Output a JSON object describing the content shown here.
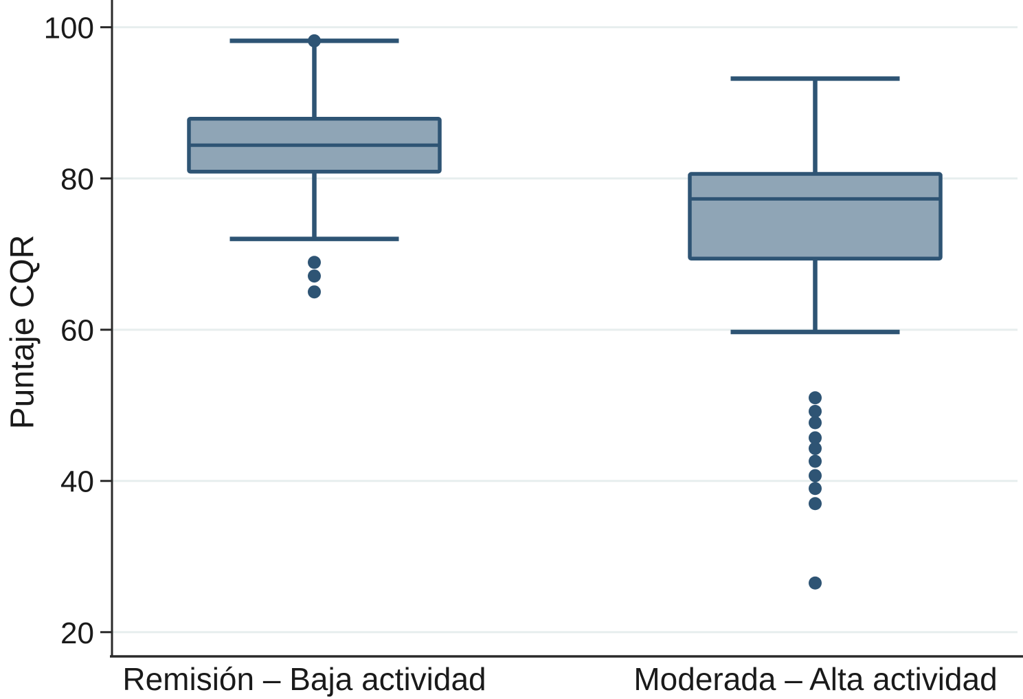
{
  "chart_data": {
    "type": "box",
    "title": "",
    "ylabel": "Puntaje CQR",
    "xlabel": "",
    "yticks": [
      20,
      40,
      60,
      80,
      100
    ],
    "ylim": [
      16.8,
      103.6
    ],
    "grid": "horizontal",
    "legend": "none",
    "categories": [
      "Remisión – Baja actividad",
      "Moderada –  Alta actividad"
    ],
    "series": [
      {
        "name": "Remisión – Baja actividad",
        "whisker_low": 72,
        "q1": 80.9,
        "median": 84.4,
        "q3": 87.9,
        "whisker_high": 98.2,
        "outliers": [
          98.2,
          68.9,
          67.1,
          65.0
        ]
      },
      {
        "name": "Moderada – Alta actividad",
        "whisker_low": 59.7,
        "q1": 69.4,
        "median": 77.3,
        "q3": 80.6,
        "whisker_high": 93.2,
        "outliers": [
          51.0,
          49.2,
          47.7,
          45.7,
          44.3,
          42.6,
          40.7,
          39.0,
          37.0,
          26.5
        ]
      }
    ],
    "colors": {
      "box_fill": "#8fa5b6",
      "box_stroke": "#2e5474",
      "outlier_fill": "#2e5474",
      "gridline": "#e7eeee",
      "axis": "#2a2a2a",
      "text": "#1a1a1a"
    }
  }
}
